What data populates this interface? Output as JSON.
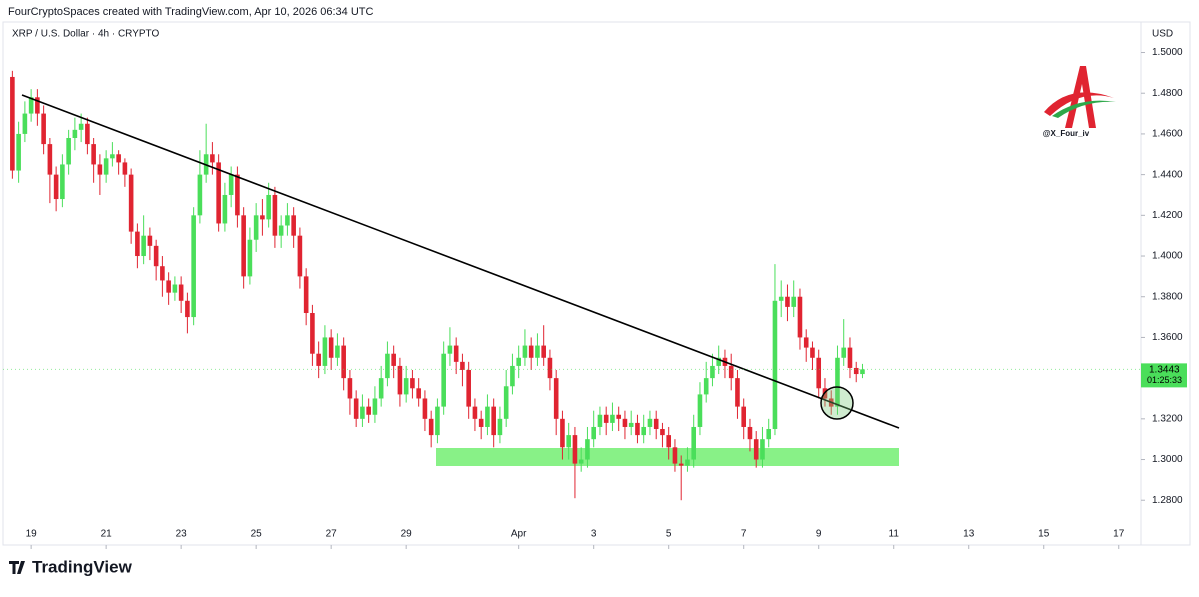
{
  "header": "FourCryptoSpaces created with TradingView.com, Apr 10, 2026 06:34 UTC",
  "brand": "TradingView",
  "watermark": "@X_Four_iv",
  "chart_data": {
    "type": "candlestick",
    "title": "XRP / U.S. Dollar · 4h · CRYPTO",
    "currency": "USD",
    "up_color": "#4ade5a",
    "down_color": "#e02431",
    "grid": false,
    "last_price": 1.3443,
    "countdown": "01:25:33",
    "xlim": [
      -1.5,
      180.4
    ],
    "ylim": [
      1.258,
      1.515
    ],
    "xticks": [
      {
        "value": 3,
        "label": "19"
      },
      {
        "value": 15,
        "label": "21"
      },
      {
        "value": 27,
        "label": "23"
      },
      {
        "value": 39,
        "label": "25"
      },
      {
        "value": 51,
        "label": "27"
      },
      {
        "value": 63,
        "label": "29"
      },
      {
        "value": 81,
        "label": "Apr"
      },
      {
        "value": 93,
        "label": "3"
      },
      {
        "value": 105,
        "label": "5"
      },
      {
        "value": 117,
        "label": "7"
      },
      {
        "value": 129,
        "label": "9"
      },
      {
        "value": 141,
        "label": "11"
      },
      {
        "value": 153,
        "label": "13"
      },
      {
        "value": 165,
        "label": "15"
      },
      {
        "value": 177,
        "label": "17"
      }
    ],
    "yticks": [
      {
        "value": 1.28,
        "label": "1.2800"
      },
      {
        "value": 1.3,
        "label": "1.3000"
      },
      {
        "value": 1.32,
        "label": "1.3200"
      },
      {
        "value": 1.34,
        "label": "1.3400"
      },
      {
        "value": 1.36,
        "label": "1.3600"
      },
      {
        "value": 1.38,
        "label": "1.3800"
      },
      {
        "value": 1.4,
        "label": "1.4000"
      },
      {
        "value": 1.42,
        "label": "1.4200"
      },
      {
        "value": 1.44,
        "label": "1.4400"
      },
      {
        "value": 1.46,
        "label": "1.4600"
      },
      {
        "value": 1.48,
        "label": "1.4800"
      },
      {
        "value": 1.5,
        "label": "1.5000"
      }
    ],
    "open": [
      1.488,
      1.442,
      1.46,
      1.47,
      1.478,
      1.47,
      1.455,
      1.44,
      1.428,
      1.445,
      1.458,
      1.462,
      1.465,
      1.455,
      1.445,
      1.44,
      1.448,
      1.45,
      1.446,
      1.44,
      1.412,
      1.4,
      1.41,
      1.405,
      1.395,
      1.388,
      1.382,
      1.386,
      1.378,
      1.37,
      1.42,
      1.44,
      1.45,
      1.446,
      1.416,
      1.43,
      1.44,
      1.42,
      1.39,
      1.408,
      1.42,
      1.418,
      1.43,
      1.41,
      1.415,
      1.42,
      1.41,
      1.39,
      1.372,
      1.352,
      1.346,
      1.36,
      1.35,
      1.356,
      1.34,
      1.33,
      1.32,
      1.326,
      1.322,
      1.33,
      1.34,
      1.352,
      1.346,
      1.332,
      1.34,
      1.335,
      1.33,
      1.32,
      1.312,
      1.326,
      1.352,
      1.356,
      1.348,
      1.344,
      1.326,
      1.32,
      1.316,
      1.326,
      1.312,
      1.32,
      1.336,
      1.346,
      1.35,
      1.356,
      1.35,
      1.356,
      1.35,
      1.34,
      1.32,
      1.306,
      1.312,
      1.298,
      1.3,
      1.31,
      1.316,
      1.322,
      1.318,
      1.322,
      1.32,
      1.316,
      1.318,
      1.312,
      1.316,
      1.32,
      1.315,
      1.312,
      1.306,
      1.298,
      1.297,
      1.3,
      1.316,
      1.332,
      1.34,
      1.346,
      1.35,
      1.346,
      1.34,
      1.326,
      1.316,
      1.31,
      1.3,
      1.31,
      1.315,
      1.378,
      1.38,
      1.375,
      1.38,
      1.36,
      1.355,
      1.35,
      1.335,
      1.33,
      1.326,
      1.35,
      1.355,
      1.345,
      1.342
    ],
    "high": [
      1.491,
      1.466,
      1.476,
      1.482,
      1.482,
      1.474,
      1.458,
      1.444,
      1.45,
      1.462,
      1.468,
      1.47,
      1.468,
      1.458,
      1.45,
      1.452,
      1.456,
      1.452,
      1.448,
      1.443,
      1.416,
      1.42,
      1.414,
      1.408,
      1.4,
      1.392,
      1.39,
      1.39,
      1.382,
      1.424,
      1.452,
      1.465,
      1.456,
      1.45,
      1.436,
      1.444,
      1.444,
      1.424,
      1.414,
      1.426,
      1.428,
      1.436,
      1.434,
      1.42,
      1.426,
      1.424,
      1.414,
      1.394,
      1.376,
      1.358,
      1.366,
      1.364,
      1.362,
      1.36,
      1.344,
      1.334,
      1.332,
      1.33,
      1.336,
      1.346,
      1.358,
      1.356,
      1.35,
      1.346,
      1.344,
      1.34,
      1.334,
      1.324,
      1.33,
      1.358,
      1.365,
      1.36,
      1.352,
      1.348,
      1.33,
      1.324,
      1.332,
      1.33,
      1.326,
      1.344,
      1.352,
      1.356,
      1.364,
      1.36,
      1.362,
      1.366,
      1.354,
      1.344,
      1.324,
      1.318,
      1.316,
      1.306,
      1.316,
      1.324,
      1.326,
      1.326,
      1.328,
      1.326,
      1.324,
      1.324,
      1.322,
      1.322,
      1.324,
      1.324,
      1.318,
      1.316,
      1.31,
      1.302,
      1.306,
      1.322,
      1.338,
      1.348,
      1.352,
      1.356,
      1.354,
      1.352,
      1.344,
      1.33,
      1.32,
      1.314,
      1.316,
      1.32,
      1.396,
      1.388,
      1.386,
      1.388,
      1.384,
      1.364,
      1.358,
      1.354,
      1.34,
      1.334,
      1.356,
      1.369,
      1.36,
      1.348,
      1.347
    ],
    "low": [
      1.438,
      1.436,
      1.456,
      1.466,
      1.464,
      1.45,
      1.426,
      1.422,
      1.424,
      1.44,
      1.452,
      1.456,
      1.45,
      1.436,
      1.43,
      1.436,
      1.444,
      1.44,
      1.434,
      1.406,
      1.394,
      1.396,
      1.398,
      1.388,
      1.38,
      1.376,
      1.378,
      1.372,
      1.362,
      1.366,
      1.416,
      1.436,
      1.44,
      1.412,
      1.412,
      1.424,
      1.414,
      1.384,
      1.386,
      1.402,
      1.41,
      1.414,
      1.404,
      1.404,
      1.41,
      1.404,
      1.384,
      1.366,
      1.346,
      1.34,
      1.342,
      1.344,
      1.346,
      1.334,
      1.322,
      1.316,
      1.316,
      1.318,
      1.318,
      1.326,
      1.336,
      1.34,
      1.326,
      1.328,
      1.33,
      1.326,
      1.314,
      1.306,
      1.308,
      1.322,
      1.346,
      1.342,
      1.336,
      1.32,
      1.314,
      1.31,
      1.312,
      1.306,
      1.308,
      1.316,
      1.332,
      1.34,
      1.346,
      1.344,
      1.346,
      1.346,
      1.334,
      1.312,
      1.3,
      1.3,
      1.281,
      1.294,
      1.296,
      1.306,
      1.312,
      1.312,
      1.314,
      1.314,
      1.31,
      1.312,
      1.308,
      1.308,
      1.312,
      1.31,
      1.306,
      1.3,
      1.294,
      1.28,
      1.294,
      1.296,
      1.312,
      1.328,
      1.336,
      1.342,
      1.34,
      1.334,
      1.32,
      1.31,
      1.304,
      1.296,
      1.296,
      1.306,
      1.312,
      1.37,
      1.368,
      1.37,
      1.354,
      1.348,
      1.344,
      1.33,
      1.326,
      1.322,
      1.322,
      1.346,
      1.34,
      1.338,
      1.34
    ],
    "close": [
      1.442,
      1.46,
      1.47,
      1.478,
      1.47,
      1.455,
      1.44,
      1.428,
      1.445,
      1.458,
      1.462,
      1.465,
      1.455,
      1.445,
      1.44,
      1.448,
      1.45,
      1.446,
      1.44,
      1.412,
      1.4,
      1.41,
      1.405,
      1.395,
      1.388,
      1.382,
      1.386,
      1.378,
      1.37,
      1.42,
      1.44,
      1.45,
      1.446,
      1.416,
      1.43,
      1.44,
      1.42,
      1.39,
      1.408,
      1.42,
      1.418,
      1.43,
      1.41,
      1.415,
      1.42,
      1.41,
      1.39,
      1.372,
      1.352,
      1.346,
      1.36,
      1.35,
      1.356,
      1.34,
      1.33,
      1.32,
      1.326,
      1.322,
      1.33,
      1.34,
      1.352,
      1.346,
      1.332,
      1.34,
      1.335,
      1.33,
      1.32,
      1.312,
      1.326,
      1.352,
      1.356,
      1.348,
      1.344,
      1.326,
      1.32,
      1.316,
      1.326,
      1.312,
      1.32,
      1.336,
      1.346,
      1.35,
      1.356,
      1.35,
      1.356,
      1.35,
      1.34,
      1.32,
      1.306,
      1.312,
      1.298,
      1.3,
      1.31,
      1.316,
      1.322,
      1.318,
      1.322,
      1.32,
      1.316,
      1.318,
      1.312,
      1.316,
      1.32,
      1.315,
      1.312,
      1.306,
      1.298,
      1.297,
      1.3,
      1.316,
      1.332,
      1.34,
      1.346,
      1.35,
      1.346,
      1.34,
      1.326,
      1.316,
      1.31,
      1.3,
      1.31,
      1.315,
      1.378,
      1.38,
      1.375,
      1.38,
      1.36,
      1.355,
      1.35,
      1.335,
      1.33,
      1.326,
      1.35,
      1.355,
      1.345,
      1.342,
      1.3443
    ]
  }
}
